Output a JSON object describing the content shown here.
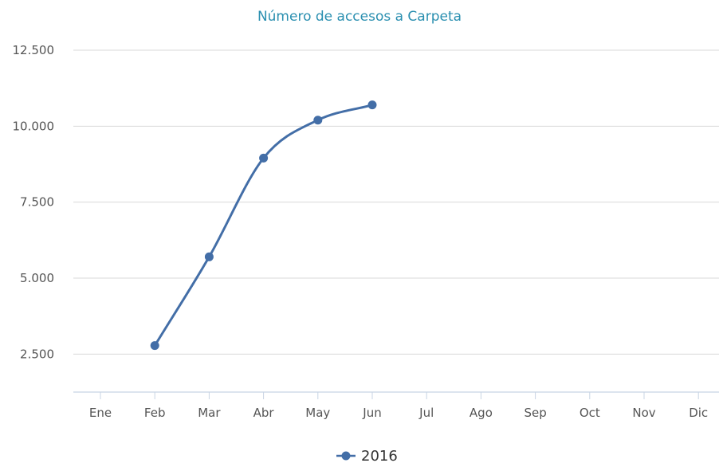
{
  "chart_data": {
    "type": "line",
    "title": "Número de accesos a Carpeta",
    "xlabel": "",
    "ylabel": "",
    "categories": [
      "Ene",
      "Feb",
      "Mar",
      "Abr",
      "May",
      "Jun",
      "Jul",
      "Ago",
      "Sep",
      "Oct",
      "Nov",
      "Dic"
    ],
    "series": [
      {
        "name": "2016",
        "color": "#436ea7",
        "values": [
          null,
          2780,
          5700,
          8950,
          10200,
          10700,
          null,
          null,
          null,
          null,
          null,
          null
        ]
      }
    ],
    "yticks": [
      2500,
      5000,
      7500,
      10000,
      12500
    ],
    "ytick_labels": [
      "2.500",
      "5.000",
      "7.500",
      "10.000",
      "12.500"
    ],
    "ylim": [
      1250,
      12500
    ],
    "grid": true,
    "legend_position": "bottom-center",
    "curve": "smooth"
  }
}
